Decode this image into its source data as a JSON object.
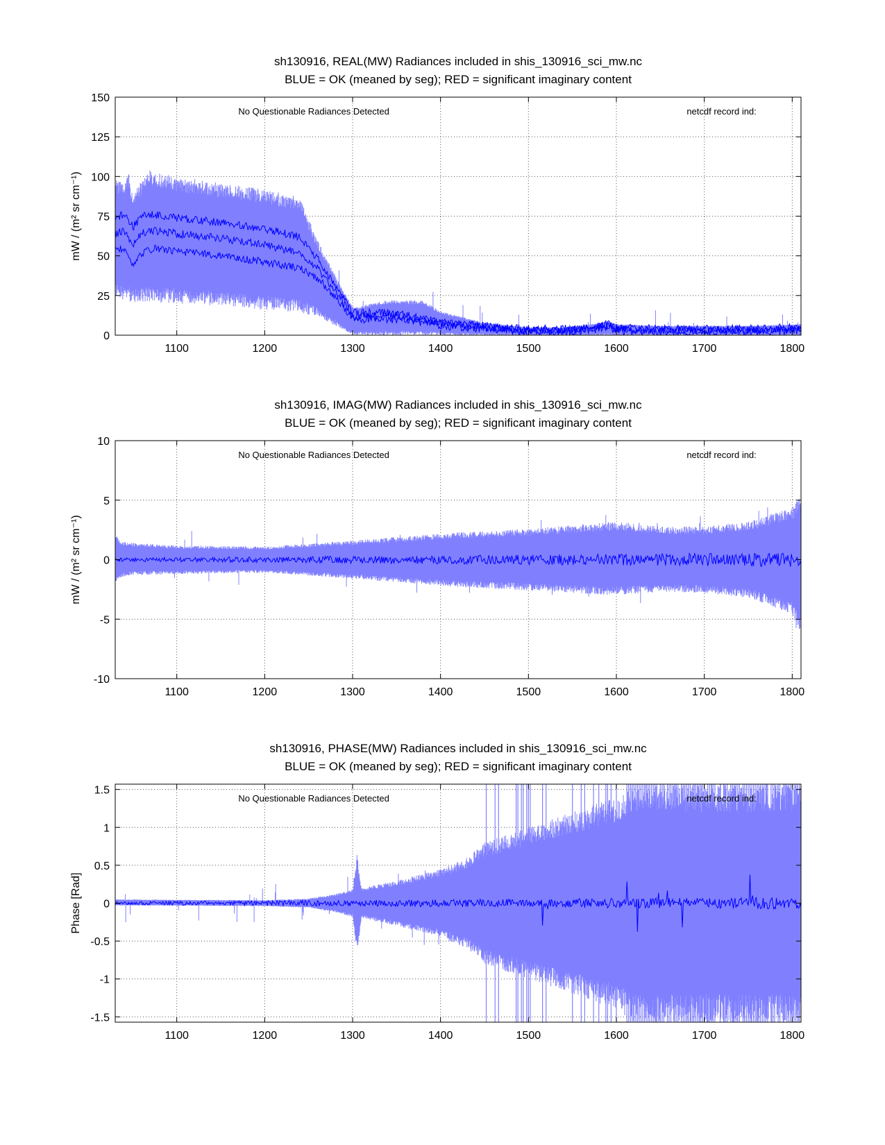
{
  "colors": {
    "band": "#8080ff",
    "line": "#0000ff",
    "axis": "#000000",
    "grid": "#555555"
  },
  "chart_data": [
    {
      "type": "line",
      "title": "sh130916, REAL(MW) Radiances included in shis_130916_sci_mw.nc",
      "subtitle": "BLUE = OK (meaned by seg); RED = significant imaginary content",
      "ylabel": "mW / (m² sr cm⁻¹)",
      "xlabel": "",
      "xlim": [
        1030,
        1810
      ],
      "ylim": [
        0,
        150
      ],
      "xticks": [
        1100,
        1200,
        1300,
        1400,
        1500,
        1600,
        1700,
        1800
      ],
      "yticks": [
        0,
        25,
        50,
        75,
        100,
        125,
        150
      ],
      "annotations": {
        "left": "No Questionable Radiances Detected",
        "right": "netcdf record ind:"
      },
      "grid": true,
      "series": [
        {
          "name": "max envelope",
          "x": [
            1030,
            1040,
            1045,
            1050,
            1060,
            1070,
            1100,
            1150,
            1200,
            1240,
            1260,
            1280,
            1300,
            1340,
            1380,
            1400,
            1450,
            1500,
            1550,
            1580,
            1590,
            1600,
            1650,
            1700,
            1750,
            1810
          ],
          "values": [
            98,
            98,
            104,
            88,
            98,
            103,
            100,
            96,
            92,
            87,
            60,
            38,
            18,
            22,
            22,
            15,
            8,
            5,
            5,
            8,
            9,
            7,
            6,
            6,
            6,
            7
          ]
        },
        {
          "name": "upper mean",
          "x": [
            1030,
            1040,
            1050,
            1060,
            1075,
            1100,
            1150,
            1200,
            1240,
            1260,
            1280,
            1300,
            1350,
            1400,
            1450,
            1500,
            1550,
            1580,
            1590,
            1600,
            1650,
            1700,
            1750,
            1810
          ],
          "values": [
            74,
            76,
            68,
            75,
            76,
            74,
            71,
            67,
            62,
            48,
            32,
            14,
            14,
            8,
            6,
            4,
            4,
            6,
            7,
            5,
            4,
            4,
            4,
            5
          ]
        },
        {
          "name": "mid mean",
          "x": [
            1030,
            1040,
            1050,
            1060,
            1075,
            1100,
            1150,
            1200,
            1240,
            1260,
            1280,
            1300,
            1350,
            1400,
            1450,
            1500,
            1550,
            1580,
            1590,
            1600,
            1650,
            1700,
            1750,
            1810
          ],
          "values": [
            64,
            66,
            56,
            64,
            66,
            64,
            61,
            57,
            52,
            42,
            28,
            12,
            12,
            7,
            5,
            3,
            3,
            5,
            6,
            4,
            3,
            3,
            3,
            4
          ]
        },
        {
          "name": "lower mean",
          "x": [
            1030,
            1040,
            1050,
            1060,
            1075,
            1100,
            1150,
            1200,
            1240,
            1260,
            1280,
            1300,
            1350,
            1400,
            1450,
            1500,
            1550,
            1580,
            1590,
            1600,
            1650,
            1700,
            1750,
            1810
          ],
          "values": [
            54,
            55,
            45,
            52,
            55,
            53,
            50,
            46,
            42,
            36,
            24,
            10,
            10,
            6,
            4,
            2,
            2,
            4,
            5,
            3,
            2,
            2,
            2,
            3
          ]
        },
        {
          "name": "min envelope",
          "x": [
            1030,
            1050,
            1100,
            1200,
            1240,
            1260,
            1280,
            1300,
            1350,
            1400,
            1500,
            1600,
            1700,
            1810
          ],
          "values": [
            23,
            21,
            20,
            16,
            14,
            12,
            6,
            0,
            0,
            0,
            0,
            0,
            0,
            0
          ]
        }
      ]
    },
    {
      "type": "line",
      "title": "sh130916, IMAG(MW) Radiances included in shis_130916_sci_mw.nc",
      "subtitle": "BLUE = OK (meaned by seg); RED = significant imaginary content",
      "ylabel": "mW / (m² sr cm⁻¹)",
      "xlabel": "",
      "xlim": [
        1030,
        1810
      ],
      "ylim": [
        -10,
        10
      ],
      "xticks": [
        1100,
        1200,
        1300,
        1400,
        1500,
        1600,
        1700,
        1800
      ],
      "yticks": [
        -10,
        -5,
        0,
        5,
        10
      ],
      "annotations": {
        "left": "No Questionable Radiances Detected",
        "right": "netcdf record ind:"
      },
      "grid": true,
      "series": [
        {
          "name": "max envelope",
          "x": [
            1030,
            1035,
            1050,
            1100,
            1200,
            1300,
            1400,
            1500,
            1600,
            1650,
            1700,
            1750,
            1800,
            1810
          ],
          "values": [
            2.2,
            1.6,
            1.4,
            1.2,
            1.1,
            1.6,
            2.2,
            2.6,
            3.2,
            2.8,
            2.8,
            3.2,
            4.4,
            5.4
          ]
        },
        {
          "name": "mean",
          "x": [
            1030,
            1810
          ],
          "values": [
            0,
            0
          ]
        },
        {
          "name": "min envelope",
          "x": [
            1030,
            1035,
            1050,
            1100,
            1200,
            1300,
            1400,
            1500,
            1600,
            1650,
            1700,
            1750,
            1800,
            1810
          ],
          "values": [
            -2.0,
            -1.5,
            -1.3,
            -1.2,
            -1.1,
            -1.6,
            -2.2,
            -2.6,
            -3.0,
            -2.7,
            -2.8,
            -3.2,
            -4.6,
            -6.3
          ]
        }
      ]
    },
    {
      "type": "line",
      "title": "sh130916, PHASE(MW) Radiances included in shis_130916_sci_mw.nc",
      "subtitle": "BLUE = OK (meaned by seg); RED = significant imaginary content",
      "ylabel": "Phase [Rad]",
      "xlabel": "",
      "xlim": [
        1030,
        1810
      ],
      "ylim": [
        -1.57,
        1.57
      ],
      "xticks": [
        1100,
        1200,
        1300,
        1400,
        1500,
        1600,
        1700,
        1800
      ],
      "yticks": [
        -1.5,
        -1,
        -0.5,
        0,
        0.5,
        1,
        1.5
      ],
      "annotations": {
        "left": "No Questionable Radiances Detected",
        "right": "netcdf record ind:"
      },
      "grid": true,
      "series": [
        {
          "name": "max envelope",
          "x": [
            1030,
            1200,
            1250,
            1280,
            1300,
            1305,
            1310,
            1350,
            1400,
            1430,
            1450,
            1500,
            1550,
            1600,
            1620,
            1810
          ],
          "values": [
            0.05,
            0.04,
            0.06,
            0.12,
            0.18,
            0.68,
            0.2,
            0.3,
            0.45,
            0.6,
            0.8,
            1.0,
            1.2,
            1.4,
            1.57,
            1.57
          ]
        },
        {
          "name": "mean",
          "x": [
            1030,
            1810
          ],
          "values": [
            0,
            0
          ]
        },
        {
          "name": "min envelope",
          "x": [
            1030,
            1200,
            1250,
            1280,
            1300,
            1305,
            1310,
            1350,
            1400,
            1430,
            1450,
            1500,
            1550,
            1600,
            1620,
            1810
          ],
          "values": [
            -0.03,
            -0.04,
            -0.06,
            -0.12,
            -0.18,
            -0.68,
            -0.2,
            -0.3,
            -0.45,
            -0.6,
            -0.8,
            -1.0,
            -1.2,
            -1.4,
            -1.57,
            -1.57
          ]
        }
      ]
    }
  ]
}
